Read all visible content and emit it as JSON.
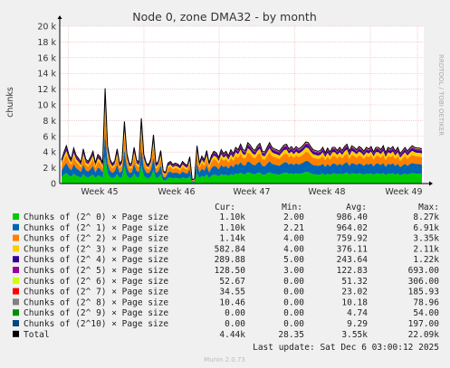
{
  "chart_data": {
    "type": "area",
    "title": "Node 0, zone DMA32 - by month",
    "ylabel": "chunks",
    "ylim": [
      0,
      20000
    ],
    "yticks": [
      0,
      2000,
      4000,
      6000,
      8000,
      10000,
      12000,
      14000,
      16000,
      18000,
      20000
    ],
    "ytick_labels": [
      "0",
      "2 k",
      "4 k",
      "6 k",
      "8 k",
      "10 k",
      "12 k",
      "14 k",
      "16 k",
      "18 k",
      "20 k"
    ],
    "xticks": [
      "Week 45",
      "Week 46",
      "Week 47",
      "Week 48",
      "Week 49"
    ],
    "grid": true,
    "stacked": true,
    "legend_headers": {
      "cur": "Cur:",
      "min": "Min:",
      "avg": "Avg:",
      "max": "Max:"
    },
    "series": [
      {
        "name": "Chunks of (2^ 0) × Page size",
        "color": "#00cc00",
        "cur": "1.10k",
        "min": "2.00",
        "avg": "986.40",
        "max": "8.27k"
      },
      {
        "name": "Chunks of (2^ 1) × Page size",
        "color": "#0066b3",
        "cur": "1.10k",
        "min": "2.21",
        "avg": "964.02",
        "max": "6.91k"
      },
      {
        "name": "Chunks of (2^ 2) × Page size",
        "color": "#ff8000",
        "cur": "1.14k",
        "min": "4.00",
        "avg": "759.92",
        "max": "3.35k"
      },
      {
        "name": "Chunks of (2^ 3) × Page size",
        "color": "#ffcc00",
        "cur": "582.84",
        "min": "4.00",
        "avg": "376.11",
        "max": "2.11k"
      },
      {
        "name": "Chunks of (2^ 4) × Page size",
        "color": "#330099",
        "cur": "289.88",
        "min": "5.00",
        "avg": "243.64",
        "max": "1.22k"
      },
      {
        "name": "Chunks of (2^ 5) × Page size",
        "color": "#990099",
        "cur": "128.50",
        "min": "3.00",
        "avg": "122.83",
        "max": "693.00"
      },
      {
        "name": "Chunks of (2^ 6) × Page size",
        "color": "#ccff00",
        "cur": "52.67",
        "min": "0.00",
        "avg": "51.32",
        "max": "306.00"
      },
      {
        "name": "Chunks of (2^ 7) × Page size",
        "color": "#ff0000",
        "cur": "34.55",
        "min": "0.00",
        "avg": "23.02",
        "max": "185.93"
      },
      {
        "name": "Chunks of (2^ 8) × Page size",
        "color": "#808080",
        "cur": "10.46",
        "min": "0.00",
        "avg": "10.18",
        "max": "78.96"
      },
      {
        "name": "Chunks of (2^ 9) × Page size",
        "color": "#008f00",
        "cur": "0.00",
        "min": "0.00",
        "avg": "4.74",
        "max": "54.00"
      },
      {
        "name": "Chunks of (2^10) × Page size",
        "color": "#00487d",
        "cur": "0.00",
        "min": "0.00",
        "avg": "9.29",
        "max": "197.00"
      },
      {
        "name": "Total",
        "color": "#000000",
        "cur": "4.44k",
        "min": "28.35",
        "avg": "3.55k",
        "max": "22.09k"
      }
    ],
    "total_profile": [
      3000,
      4000,
      4800,
      3700,
      3100,
      4500,
      3600,
      3200,
      2700,
      4400,
      3100,
      2800,
      3400,
      4100,
      2600,
      3700,
      3400,
      2600,
      12100,
      4800,
      3100,
      2500,
      2900,
      4400,
      2500,
      3000,
      7900,
      3800,
      2500,
      2600,
      4600,
      3000,
      2700,
      8300,
      3700,
      2600,
      2400,
      3200,
      6200,
      2500,
      2800,
      4200,
      1600,
      1400,
      2600,
      2800,
      2400,
      2600,
      2500,
      2200,
      2800,
      2500,
      2300,
      3400,
      500,
      600,
      4800,
      2600,
      3500,
      3000,
      4200,
      2600,
      3600,
      4100,
      3900,
      3300,
      4300,
      3800,
      4100,
      3500,
      4300,
      3800,
      4600,
      4300,
      5000,
      4300,
      4200,
      5200,
      4900,
      4400,
      4200,
      4800,
      5100,
      4100,
      4000,
      4600,
      5200,
      4600,
      4400,
      4300,
      4100,
      4500,
      4900,
      5000,
      4400,
      4700,
      4300,
      4700,
      4400,
      4600,
      4900,
      5300,
      5200,
      4700,
      4300,
      4200,
      4100,
      4200,
      4600,
      3900,
      4500,
      4000,
      4600,
      4600,
      4200,
      4600,
      4200,
      4700,
      5000,
      4100,
      4800,
      4600,
      4300,
      4700,
      4500,
      4100,
      4600,
      4400,
      4700,
      4000,
      4600,
      4600,
      4300,
      4800,
      3900,
      4600,
      4400,
      4700,
      4100,
      4600,
      3800,
      4200,
      4600,
      4100,
      4500,
      4800,
      4600,
      4500,
      4500,
      4400
    ]
  },
  "side_label": "RRDTOOL / TOBI OETIKER",
  "last_update": "Last update: Sat Dec  6 03:00:12 2025",
  "footer": "Munin 2.0.73"
}
